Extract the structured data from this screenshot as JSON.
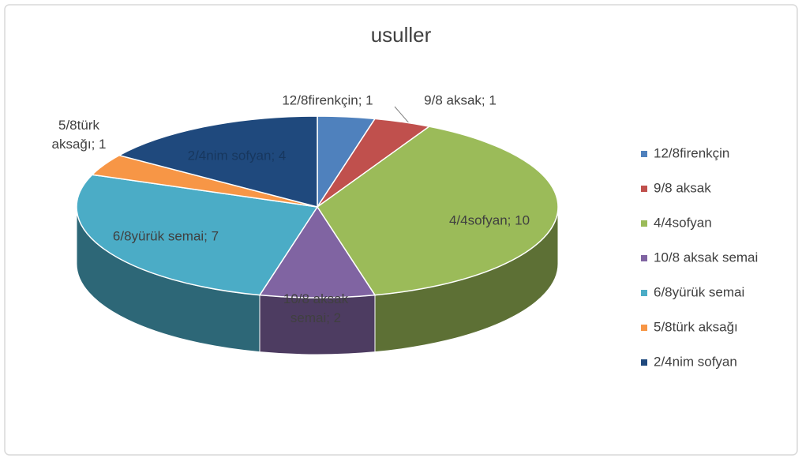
{
  "chart_data": {
    "type": "pie3d",
    "title": "usuller",
    "categories": [
      "12/8firenkçin",
      "9/8 aksak",
      "4/4sofyan",
      "10/8 aksak semai",
      "6/8yürük semai",
      "5/8türk aksağı",
      "2/4nim sofyan"
    ],
    "values": [
      1,
      1,
      10,
      2,
      7,
      1,
      4
    ],
    "value_labels": [
      "12/8firenkçin; 1",
      "9/8 aksak; 1",
      "4/4sofyan; 10",
      "10/8 aksak semai; 2",
      "6/8yürük semai; 7",
      "5/8türk aksağı; 1",
      "2/4nim sofyan; 4"
    ],
    "colors": [
      "#4f81bd",
      "#c0504d",
      "#9bbb59",
      "#8064a2",
      "#4bacc6",
      "#f79646",
      "#1f497d"
    ],
    "legend": "right"
  }
}
